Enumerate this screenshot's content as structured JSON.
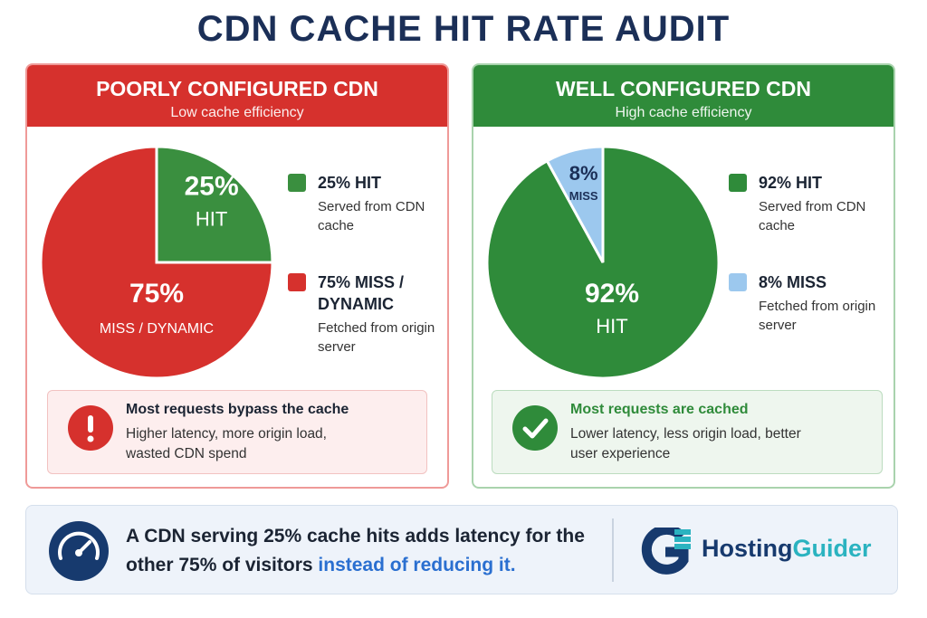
{
  "title": "CDN CACHE HIT RATE AUDIT",
  "chart_data": [
    {
      "type": "pie",
      "title": "POORLY CONFIGURED CDN",
      "subtitle": "Low cache efficiency",
      "header_color": "#d6312d",
      "categories": [
        "HIT",
        "MISS / DYNAMIC"
      ],
      "values": [
        25,
        75
      ],
      "value_labels": [
        "25%",
        "75%"
      ],
      "colors": [
        "#3a8f3f",
        "#d6312d"
      ],
      "legend": [
        {
          "label": "25% HIT",
          "description": "Served from CDN cache"
        },
        {
          "label": "75% MISS / DYNAMIC",
          "description": "Fetched from origin server"
        }
      ],
      "callout": {
        "title": "Most requests bypass the cache",
        "text": "Higher latency, more origin load, wasted CDN spend"
      }
    },
    {
      "type": "pie",
      "title": "WELL CONFIGURED CDN",
      "subtitle": "High cache efficiency",
      "header_color": "#2f8b3a",
      "categories": [
        "HIT",
        "MISS"
      ],
      "values": [
        92,
        8
      ],
      "value_labels": [
        "92%",
        "8%"
      ],
      "colors": [
        "#2f8b3a",
        "#9cc8ee"
      ],
      "legend": [
        {
          "label": "92% HIT",
          "description": "Served from CDN cache"
        },
        {
          "label": "8% MISS",
          "description": "Fetched from origin server"
        }
      ],
      "callout": {
        "title": "Most requests are cached",
        "text": "Lower latency, less origin load, better user experience"
      }
    }
  ],
  "footer": {
    "message": "A CDN serving 25% cache hits adds latency for the other 75% of visitors",
    "highlight": "instead of reducing it."
  },
  "brand": {
    "part1": "Hosting",
    "part2": "Guider"
  }
}
